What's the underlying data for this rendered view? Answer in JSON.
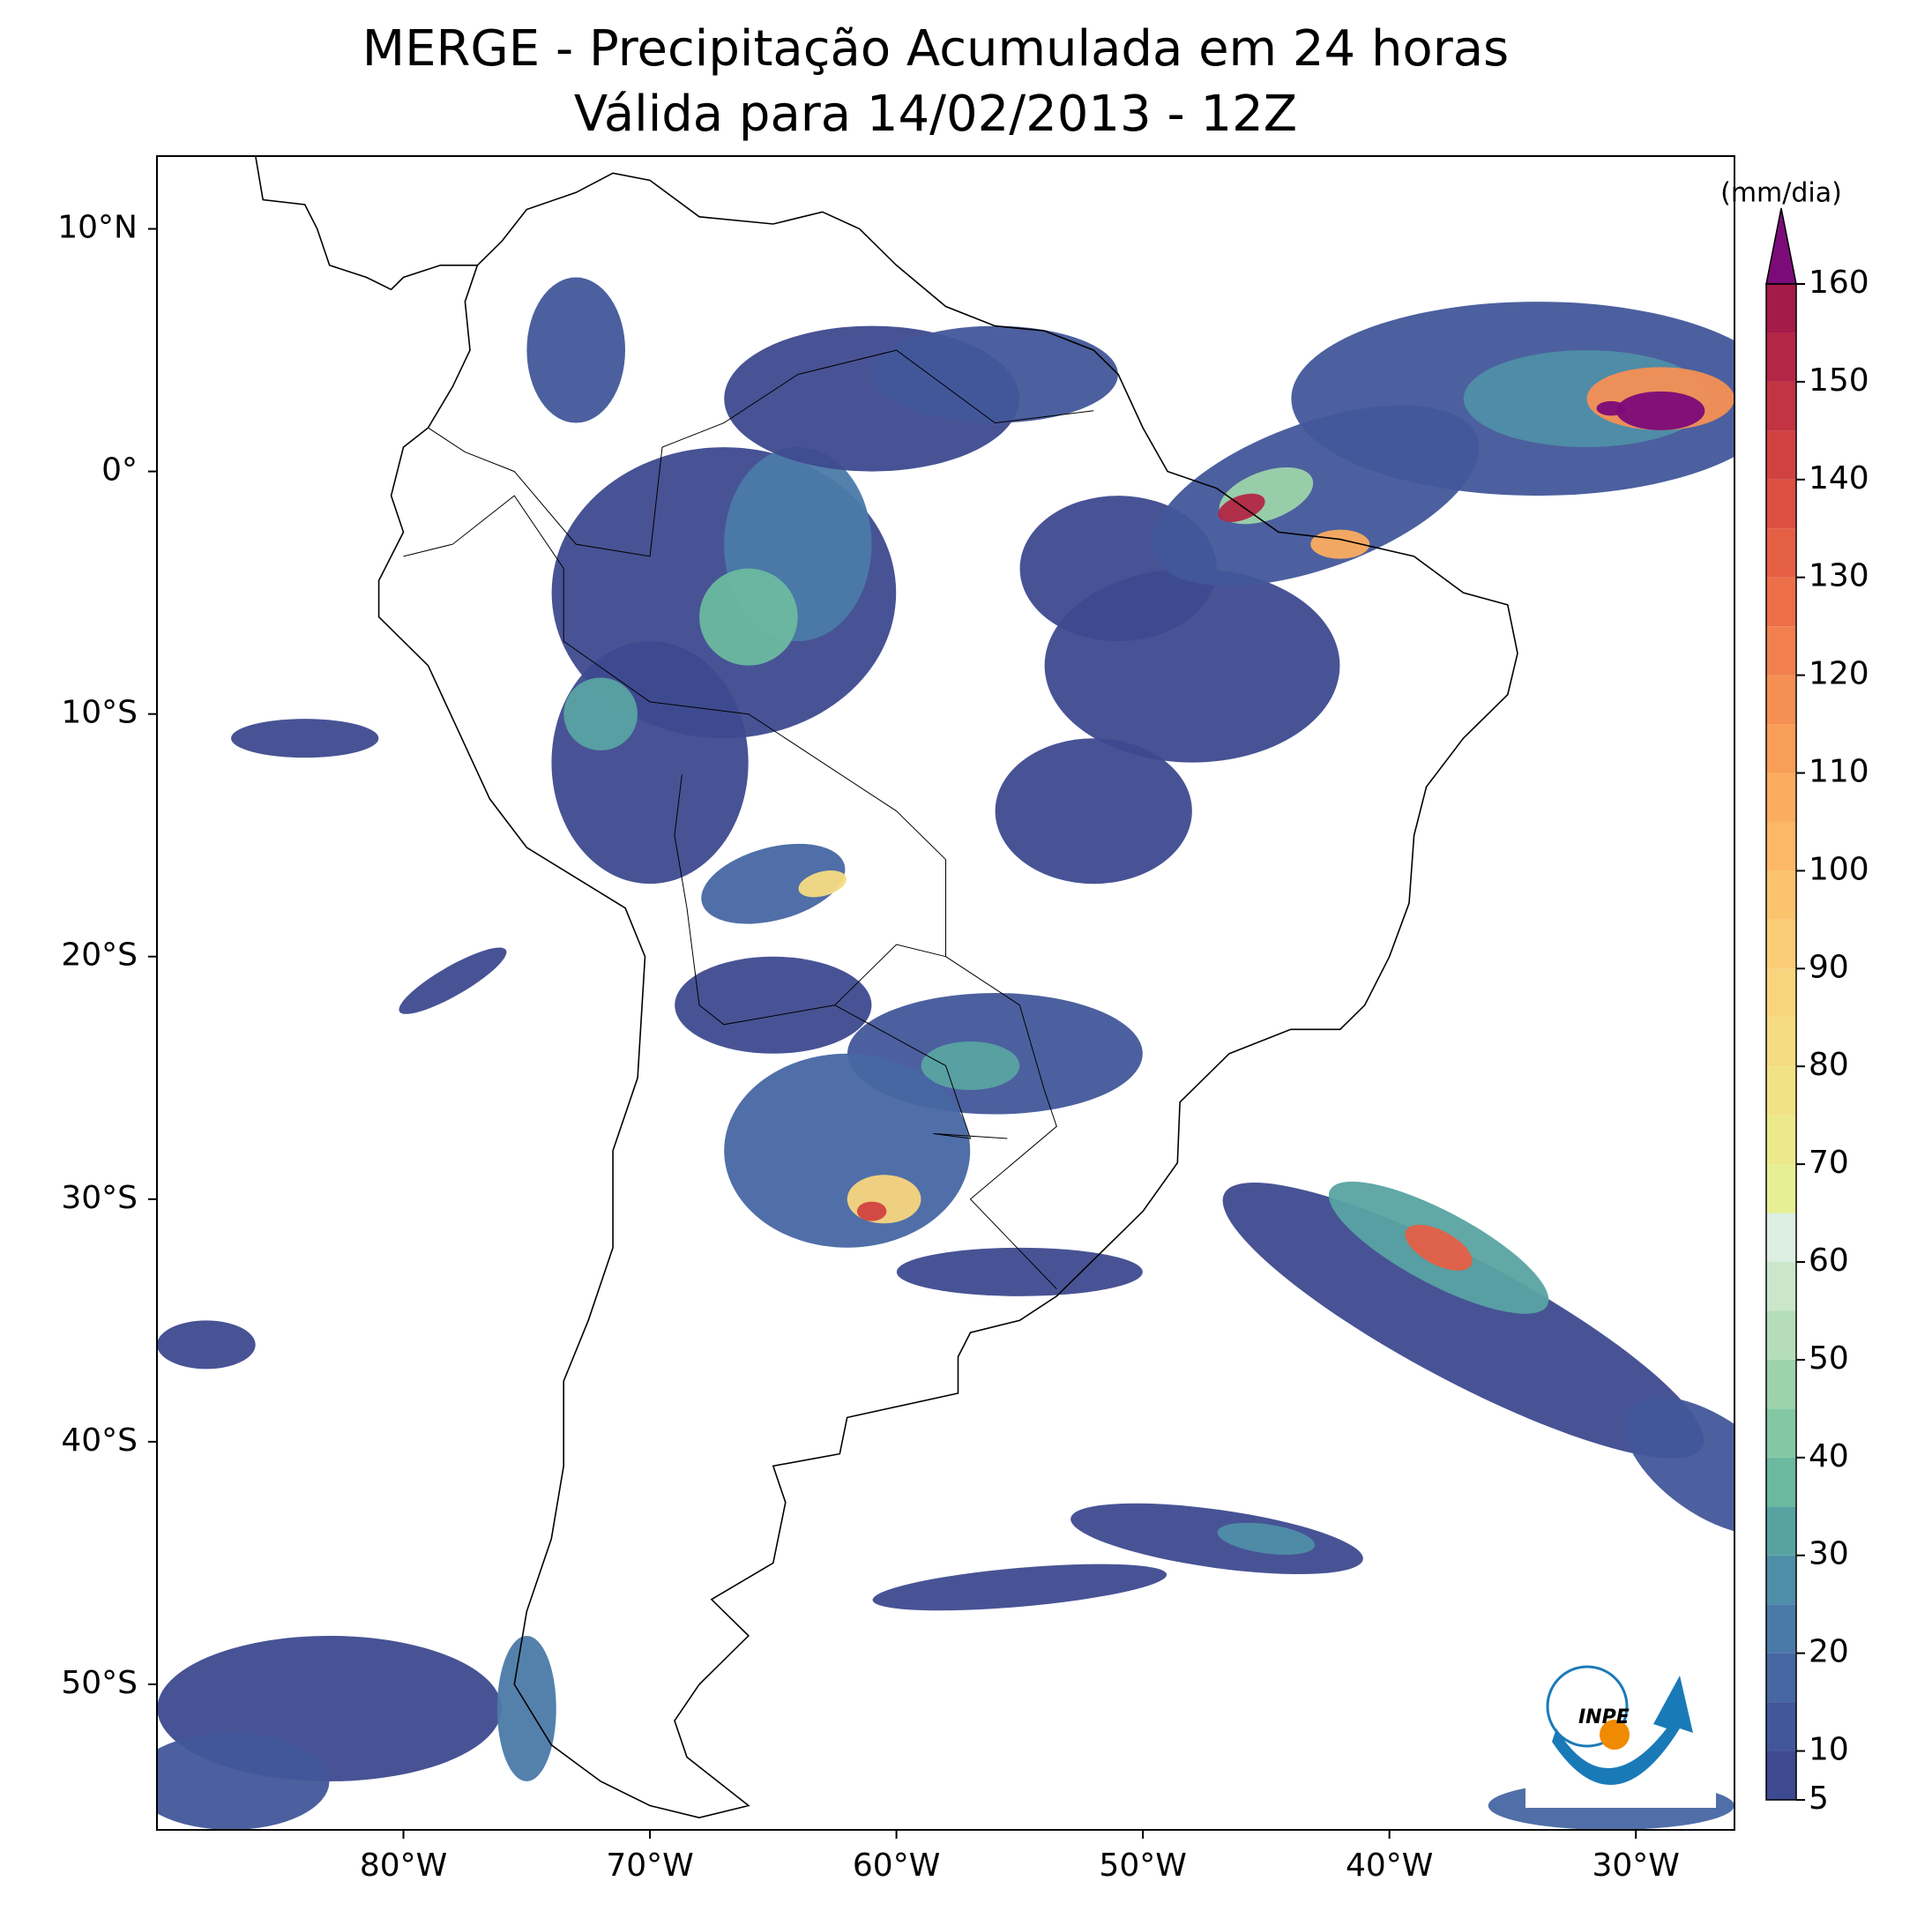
{
  "chart_data": {
    "type": "map",
    "title": "MERGE - Precipitação Acumulada em 24 horas",
    "subtitle": "Válida para 14/02/2013 - 12Z",
    "xlim": [
      -90,
      -26
    ],
    "ylim": [
      -56,
      13
    ],
    "xticks": [
      {
        "value": -80,
        "label": "80°W"
      },
      {
        "value": -70,
        "label": "70°W"
      },
      {
        "value": -60,
        "label": "60°W"
      },
      {
        "value": -50,
        "label": "50°W"
      },
      {
        "value": -40,
        "label": "40°W"
      },
      {
        "value": -30,
        "label": "30°W"
      }
    ],
    "yticks": [
      {
        "value": 10,
        "label": "10°N"
      },
      {
        "value": 0,
        "label": "0°"
      },
      {
        "value": -10,
        "label": "10°S"
      },
      {
        "value": -20,
        "label": "20°S"
      },
      {
        "value": -30,
        "label": "30°S"
      },
      {
        "value": -40,
        "label": "40°S"
      },
      {
        "value": -50,
        "label": "50°S"
      }
    ],
    "colorbar": {
      "label": "(mm/dia)",
      "lim": [
        5,
        160
      ],
      "ticks": [
        5,
        10,
        20,
        30,
        40,
        50,
        60,
        70,
        80,
        90,
        100,
        110,
        120,
        130,
        140,
        150,
        160
      ],
      "levels": [
        5,
        10,
        15,
        20,
        25,
        30,
        35,
        40,
        45,
        50,
        55,
        60,
        65,
        70,
        75,
        80,
        85,
        90,
        95,
        100,
        105,
        110,
        115,
        120,
        125,
        130,
        135,
        140,
        145,
        150,
        155,
        160
      ],
      "colors": [
        "#3e4a8f",
        "#42579a",
        "#4767a3",
        "#4b7aa8",
        "#4f8ea8",
        "#58a3a2",
        "#6bb99f",
        "#83c8a3",
        "#9cd3ab",
        "#b5deb8",
        "#cae7cb",
        "#dcefe2",
        "#e6ef94",
        "#ece98c",
        "#f1e286",
        "#f5dc82",
        "#f8d57d",
        "#fbcd77",
        "#fcc36f",
        "#fcb866",
        "#fbac5f",
        "#f99e59",
        "#f68f54",
        "#f2804f",
        "#ec6f4a",
        "#e55f45",
        "#dc5041",
        "#d0423f",
        "#c23441",
        "#b32645",
        "#a41a49"
      ],
      "extend_color": "#7b0b79"
    },
    "logo_text": "INPE"
  }
}
